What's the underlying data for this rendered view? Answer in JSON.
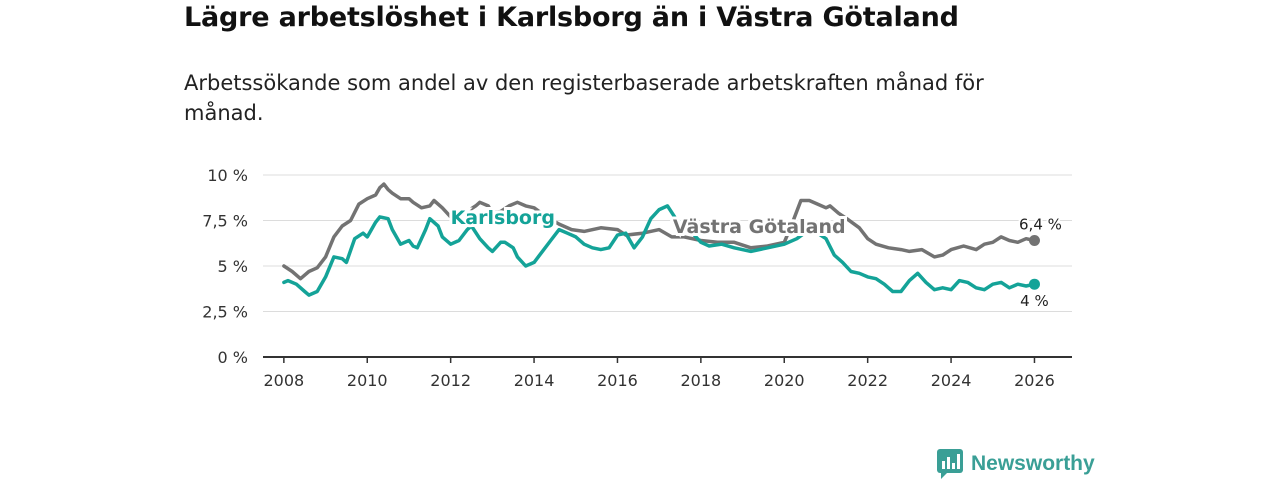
{
  "title": "Lägre arbetslöshet i Karlsborg än i Västra Götaland",
  "subtitle": "Arbetssökande som andel av den registerbaserade arbetskraften månad för månad.",
  "brand": {
    "name": "Newsworthy"
  },
  "colors": {
    "karlsborg": "#14a398",
    "vastra": "#737373",
    "grid": "#dcdcdc",
    "axis": "#333333",
    "brand": "#3a9f96"
  },
  "chart_data": {
    "type": "line",
    "title": "Lägre arbetslöshet i Karlsborg än i Västra Götaland",
    "xlabel": "",
    "ylabel": "",
    "xlim": [
      2007.5,
      2026.9
    ],
    "ylim": [
      0,
      10
    ],
    "y_ticks": [
      0,
      2.5,
      5,
      7.5,
      10
    ],
    "y_tick_labels": [
      "0 %",
      "2,5 %",
      "5 %",
      "7,5 %",
      "10 %"
    ],
    "x_ticks": [
      2008,
      2010,
      2012,
      2014,
      2016,
      2018,
      2020,
      2022,
      2024,
      2026
    ],
    "x_tick_labels": [
      "2008",
      "2010",
      "2012",
      "2014",
      "2016",
      "2018",
      "2020",
      "2022",
      "2024",
      "2026"
    ],
    "grid": true,
    "series": [
      {
        "name": "Västra Götaland",
        "label": "Västra Götaland",
        "end_label": "6,4 %",
        "points": [
          [
            2008.0,
            5.0
          ],
          [
            2008.2,
            4.7
          ],
          [
            2008.4,
            4.3
          ],
          [
            2008.6,
            4.7
          ],
          [
            2008.8,
            4.9
          ],
          [
            2009.0,
            5.5
          ],
          [
            2009.2,
            6.6
          ],
          [
            2009.4,
            7.2
          ],
          [
            2009.6,
            7.5
          ],
          [
            2009.8,
            8.4
          ],
          [
            2010.0,
            8.7
          ],
          [
            2010.2,
            8.9
          ],
          [
            2010.3,
            9.3
          ],
          [
            2010.4,
            9.5
          ],
          [
            2010.5,
            9.2
          ],
          [
            2010.6,
            9.0
          ],
          [
            2010.8,
            8.7
          ],
          [
            2011.0,
            8.7
          ],
          [
            2011.1,
            8.5
          ],
          [
            2011.3,
            8.2
          ],
          [
            2011.5,
            8.3
          ],
          [
            2011.6,
            8.6
          ],
          [
            2011.8,
            8.2
          ],
          [
            2012.0,
            7.7
          ],
          [
            2012.2,
            8.0
          ],
          [
            2012.4,
            8.0
          ],
          [
            2012.6,
            8.3
          ],
          [
            2012.7,
            8.5
          ],
          [
            2012.9,
            8.3
          ],
          [
            2013.0,
            7.9
          ],
          [
            2013.2,
            8.0
          ],
          [
            2013.4,
            8.3
          ],
          [
            2013.6,
            8.5
          ],
          [
            2013.8,
            8.3
          ],
          [
            2014.0,
            8.2
          ],
          [
            2014.3,
            7.7
          ],
          [
            2014.6,
            7.3
          ],
          [
            2014.9,
            7.0
          ],
          [
            2015.2,
            6.9
          ],
          [
            2015.6,
            7.1
          ],
          [
            2016.0,
            7.0
          ],
          [
            2016.2,
            6.7
          ],
          [
            2016.6,
            6.8
          ],
          [
            2017.0,
            7.0
          ],
          [
            2017.3,
            6.6
          ],
          [
            2017.6,
            6.6
          ],
          [
            2018.0,
            6.4
          ],
          [
            2018.4,
            6.3
          ],
          [
            2018.8,
            6.3
          ],
          [
            2019.2,
            6.0
          ],
          [
            2019.6,
            6.1
          ],
          [
            2020.0,
            6.3
          ],
          [
            2020.2,
            7.4
          ],
          [
            2020.4,
            8.6
          ],
          [
            2020.6,
            8.6
          ],
          [
            2020.8,
            8.4
          ],
          [
            2021.0,
            8.2
          ],
          [
            2021.1,
            8.3
          ],
          [
            2021.3,
            7.9
          ],
          [
            2021.5,
            7.6
          ],
          [
            2021.8,
            7.1
          ],
          [
            2022.0,
            6.5
          ],
          [
            2022.2,
            6.2
          ],
          [
            2022.5,
            6.0
          ],
          [
            2022.8,
            5.9
          ],
          [
            2023.0,
            5.8
          ],
          [
            2023.3,
            5.9
          ],
          [
            2023.6,
            5.5
          ],
          [
            2023.8,
            5.6
          ],
          [
            2024.0,
            5.9
          ],
          [
            2024.3,
            6.1
          ],
          [
            2024.6,
            5.9
          ],
          [
            2024.8,
            6.2
          ],
          [
            2025.0,
            6.3
          ],
          [
            2025.2,
            6.6
          ],
          [
            2025.4,
            6.4
          ],
          [
            2025.6,
            6.3
          ],
          [
            2025.8,
            6.5
          ],
          [
            2026.0,
            6.4
          ]
        ]
      },
      {
        "name": "Karlsborg",
        "label": "Karlsborg",
        "end_label": "4 %",
        "points": [
          [
            2008.0,
            4.1
          ],
          [
            2008.1,
            4.2
          ],
          [
            2008.3,
            4.0
          ],
          [
            2008.5,
            3.6
          ],
          [
            2008.6,
            3.4
          ],
          [
            2008.8,
            3.6
          ],
          [
            2009.0,
            4.4
          ],
          [
            2009.2,
            5.5
          ],
          [
            2009.4,
            5.4
          ],
          [
            2009.5,
            5.2
          ],
          [
            2009.7,
            6.5
          ],
          [
            2009.9,
            6.8
          ],
          [
            2010.0,
            6.6
          ],
          [
            2010.2,
            7.4
          ],
          [
            2010.3,
            7.7
          ],
          [
            2010.5,
            7.6
          ],
          [
            2010.6,
            7.0
          ],
          [
            2010.8,
            6.2
          ],
          [
            2011.0,
            6.4
          ],
          [
            2011.1,
            6.1
          ],
          [
            2011.2,
            6.0
          ],
          [
            2011.4,
            7.0
          ],
          [
            2011.5,
            7.6
          ],
          [
            2011.7,
            7.2
          ],
          [
            2011.8,
            6.6
          ],
          [
            2012.0,
            6.2
          ],
          [
            2012.2,
            6.4
          ],
          [
            2012.4,
            7.0
          ],
          [
            2012.5,
            7.2
          ],
          [
            2012.7,
            6.5
          ],
          [
            2012.9,
            6.0
          ],
          [
            2013.0,
            5.8
          ],
          [
            2013.2,
            6.3
          ],
          [
            2013.3,
            6.3
          ],
          [
            2013.5,
            6.0
          ],
          [
            2013.6,
            5.5
          ],
          [
            2013.8,
            5.0
          ],
          [
            2014.0,
            5.2
          ],
          [
            2014.2,
            5.8
          ],
          [
            2014.4,
            6.4
          ],
          [
            2014.6,
            7.0
          ],
          [
            2014.8,
            6.8
          ],
          [
            2015.0,
            6.6
          ],
          [
            2015.2,
            6.2
          ],
          [
            2015.4,
            6.0
          ],
          [
            2015.6,
            5.9
          ],
          [
            2015.8,
            6.0
          ],
          [
            2016.0,
            6.7
          ],
          [
            2016.2,
            6.8
          ],
          [
            2016.4,
            6.0
          ],
          [
            2016.6,
            6.6
          ],
          [
            2016.8,
            7.6
          ],
          [
            2017.0,
            8.1
          ],
          [
            2017.2,
            8.3
          ],
          [
            2017.4,
            7.6
          ],
          [
            2017.6,
            7.2
          ],
          [
            2017.8,
            6.8
          ],
          [
            2018.0,
            6.3
          ],
          [
            2018.2,
            6.1
          ],
          [
            2018.5,
            6.2
          ],
          [
            2018.8,
            6.0
          ],
          [
            2019.2,
            5.8
          ],
          [
            2019.6,
            6.0
          ],
          [
            2020.0,
            6.2
          ],
          [
            2020.3,
            6.5
          ],
          [
            2020.6,
            7.0
          ],
          [
            2020.8,
            6.8
          ],
          [
            2021.0,
            6.5
          ],
          [
            2021.2,
            5.6
          ],
          [
            2021.4,
            5.2
          ],
          [
            2021.6,
            4.7
          ],
          [
            2021.8,
            4.6
          ],
          [
            2022.0,
            4.4
          ],
          [
            2022.2,
            4.3
          ],
          [
            2022.4,
            4.0
          ],
          [
            2022.6,
            3.6
          ],
          [
            2022.8,
            3.6
          ],
          [
            2023.0,
            4.2
          ],
          [
            2023.2,
            4.6
          ],
          [
            2023.4,
            4.1
          ],
          [
            2023.6,
            3.7
          ],
          [
            2023.8,
            3.8
          ],
          [
            2024.0,
            3.7
          ],
          [
            2024.2,
            4.2
          ],
          [
            2024.4,
            4.1
          ],
          [
            2024.6,
            3.8
          ],
          [
            2024.8,
            3.7
          ],
          [
            2025.0,
            4.0
          ],
          [
            2025.2,
            4.1
          ],
          [
            2025.4,
            3.8
          ],
          [
            2025.6,
            4.0
          ],
          [
            2025.8,
            3.9
          ],
          [
            2026.0,
            4.0
          ]
        ]
      }
    ]
  }
}
